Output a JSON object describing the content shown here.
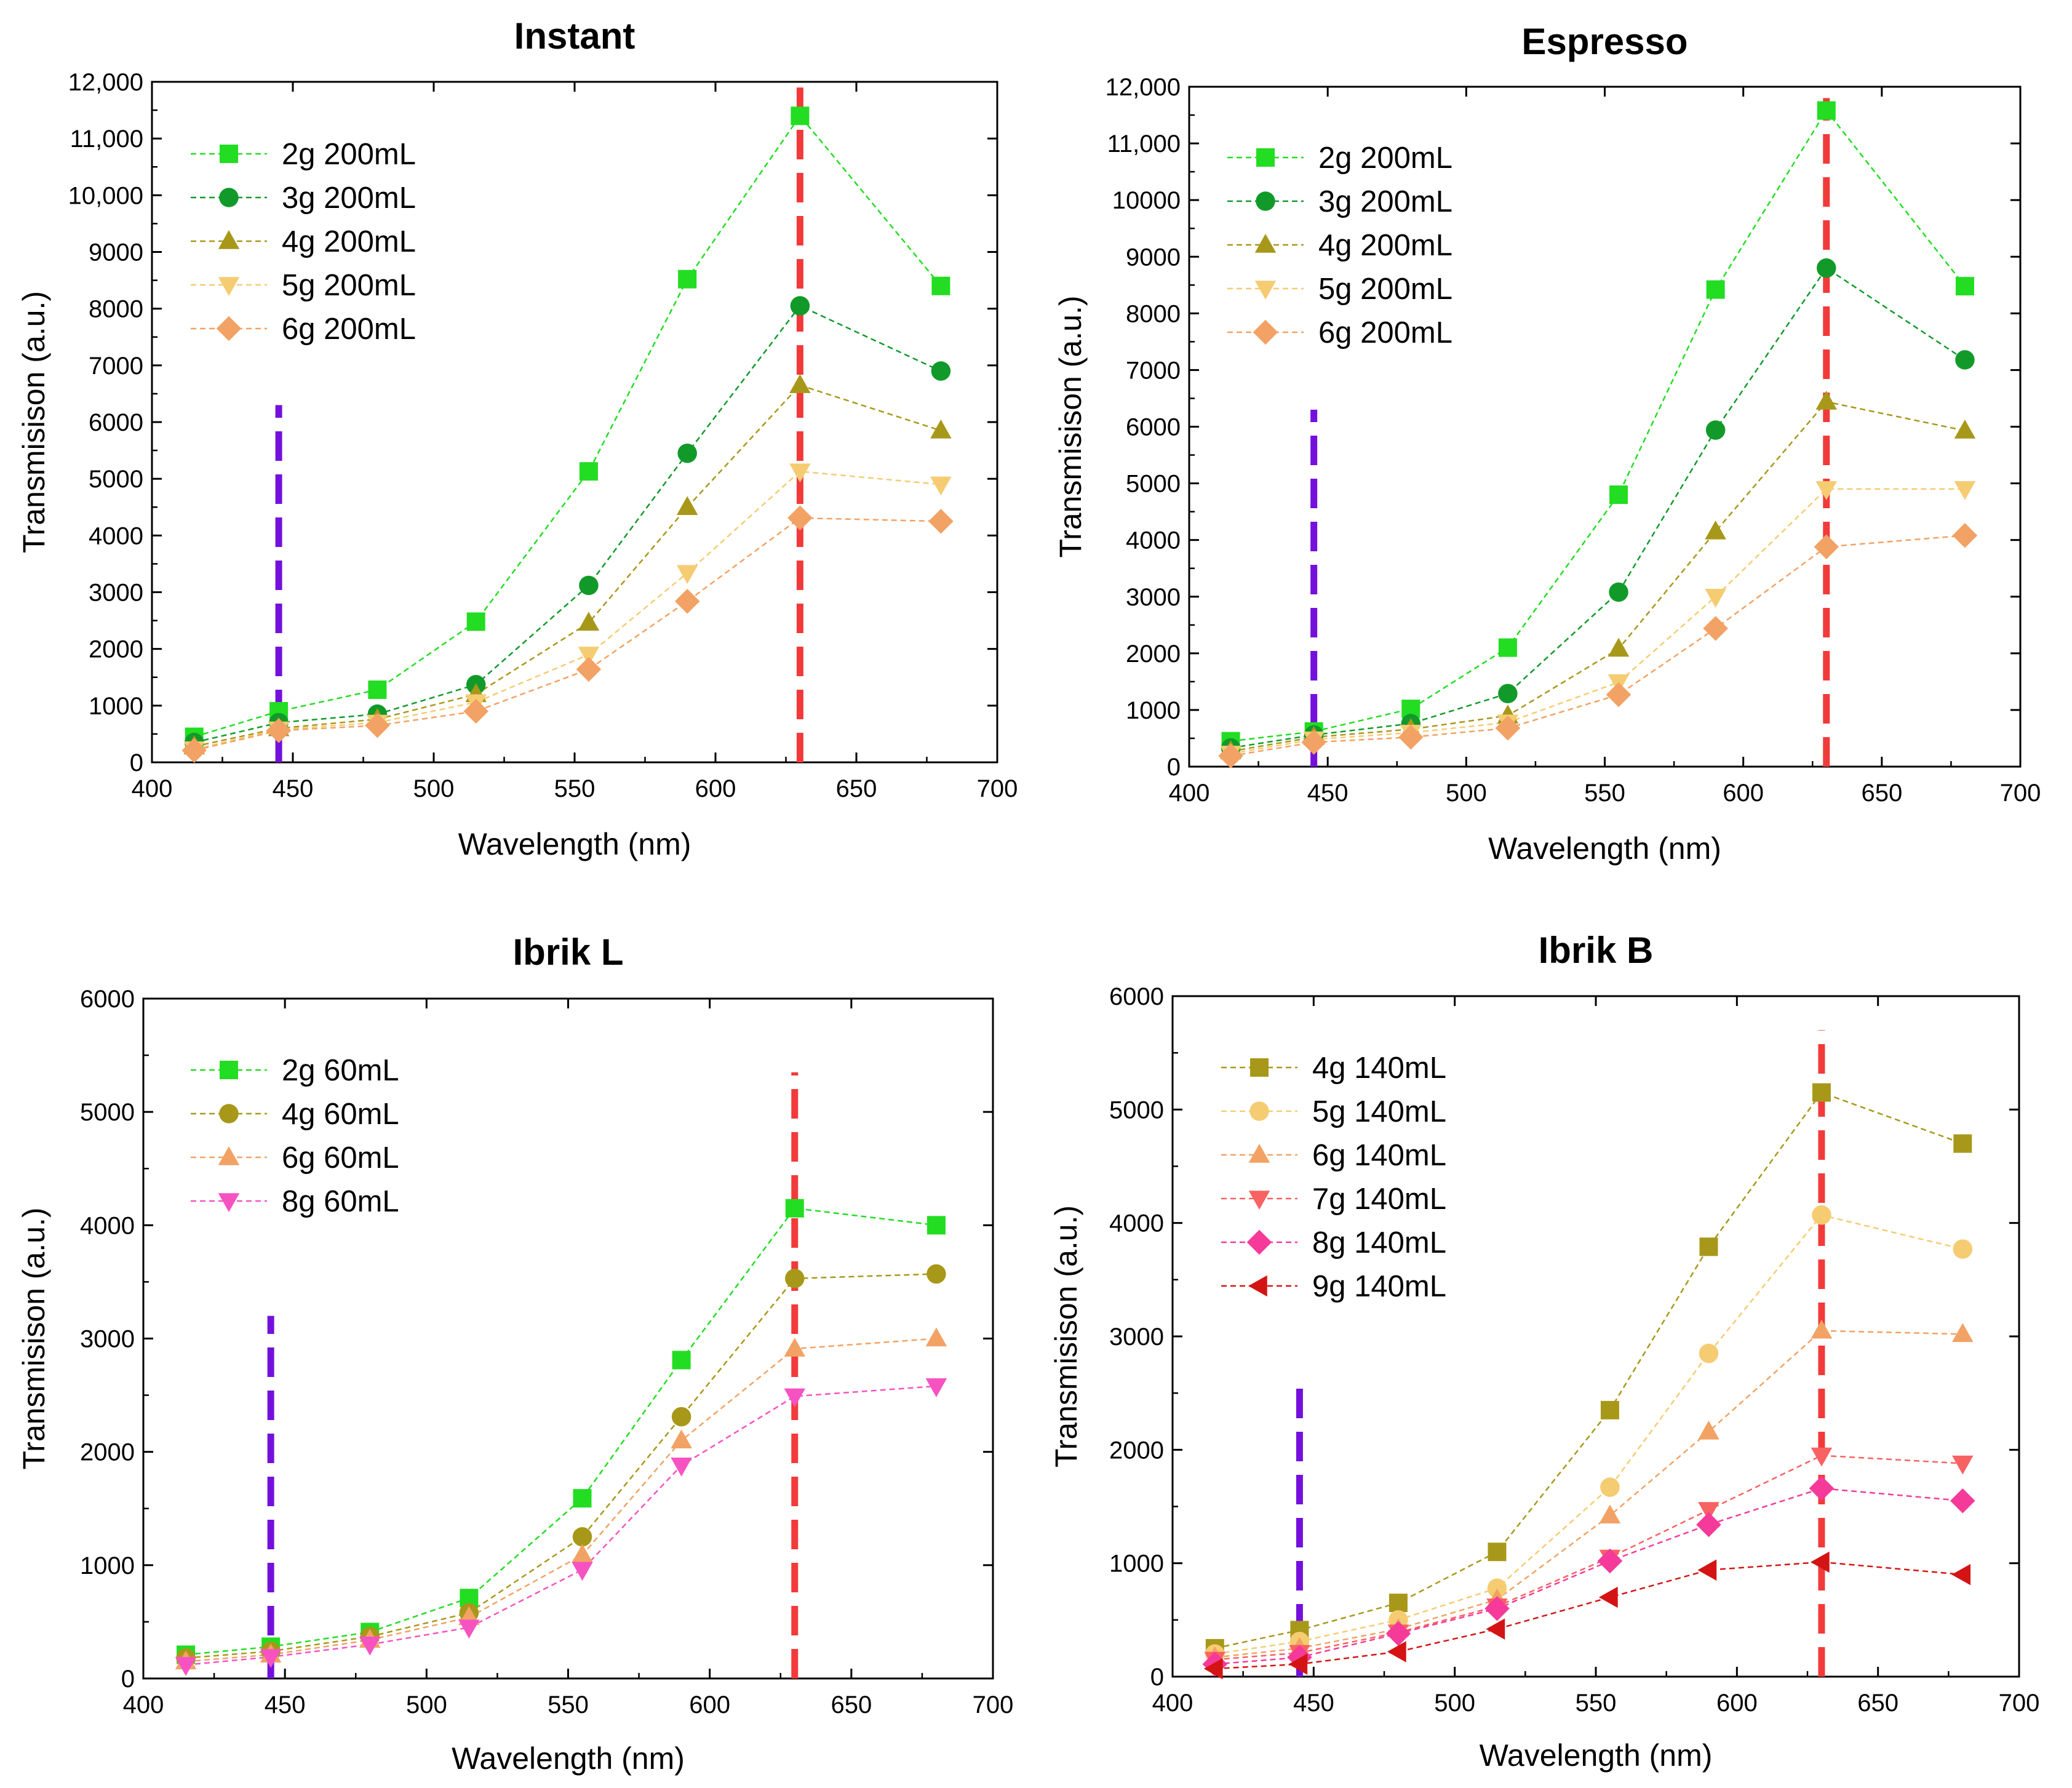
{
  "figure": {
    "panels": 4
  },
  "chart_data": [
    {
      "type": "line",
      "title": "Instant",
      "xlabel": "Wavelength (nm)",
      "ylabel": "Transmisison (a.u.)",
      "xlim": [
        400,
        700
      ],
      "ylim": [
        0,
        12000
      ],
      "xticks": [
        400,
        450,
        500,
        550,
        600,
        650,
        700
      ],
      "yticks": [
        0,
        1000,
        2000,
        3000,
        4000,
        5000,
        6000,
        7000,
        8000,
        9000,
        10000,
        11000,
        12000
      ],
      "ytick_labels": [
        "0",
        "1000",
        "2000",
        "3000",
        "4000",
        "5000",
        "6000",
        "7000",
        "8000",
        "9000",
        "10,000",
        "11,000",
        "12,000"
      ],
      "x": [
        415,
        445,
        480,
        515,
        555,
        590,
        630,
        680
      ],
      "series": [
        {
          "name": "2g 200mL",
          "color": "#22dd22",
          "marker": "square",
          "values": [
            450,
            900,
            1280,
            2480,
            5130,
            8520,
            11400,
            8400
          ]
        },
        {
          "name": "3g 200mL",
          "color": "#119a2a",
          "marker": "circle",
          "values": [
            350,
            700,
            850,
            1370,
            3120,
            5450,
            8050,
            6900
          ]
        },
        {
          "name": "4g 200mL",
          "color": "#a8981a",
          "marker": "triangle-up",
          "values": [
            280,
            600,
            760,
            1200,
            2460,
            4500,
            6650,
            5850
          ]
        },
        {
          "name": "5g 200mL",
          "color": "#f5cc72",
          "marker": "triangle-down",
          "values": [
            230,
            580,
            700,
            1060,
            1900,
            3340,
            5130,
            4900
          ]
        },
        {
          "name": "6g 200mL",
          "color": "#f2a264",
          "marker": "diamond",
          "values": [
            210,
            560,
            650,
            900,
            1640,
            2840,
            4310,
            4250
          ]
        }
      ],
      "vlines": [
        {
          "x": 445,
          "ymin": 0,
          "ymax": 6300,
          "color": "#7410dc"
        },
        {
          "x": 630,
          "ymin": 0,
          "ymax": 11900,
          "color": "#f23a3a"
        }
      ]
    },
    {
      "type": "line",
      "title": "Espresso",
      "xlabel": "Wavelength (nm)",
      "ylabel": "Transmisison (a.u.)",
      "xlim": [
        400,
        700
      ],
      "ylim": [
        0,
        12000
      ],
      "xticks": [
        400,
        450,
        500,
        550,
        600,
        650,
        700
      ],
      "yticks": [
        0,
        1000,
        2000,
        3000,
        4000,
        5000,
        6000,
        7000,
        8000,
        9000,
        10000,
        11000,
        12000
      ],
      "ytick_labels": [
        "0",
        "1000",
        "2000",
        "3000",
        "4000",
        "5000",
        "6000",
        "7000",
        "8000",
        "9000",
        "10000",
        "11,000",
        "12,000"
      ],
      "x": [
        415,
        445,
        480,
        515,
        555,
        590,
        630,
        680
      ],
      "series": [
        {
          "name": "2g 200mL",
          "color": "#22dd22",
          "marker": "square",
          "values": [
            450,
            620,
            1020,
            2100,
            4800,
            8420,
            11580,
            8480
          ]
        },
        {
          "name": "3g 200mL",
          "color": "#119a2a",
          "marker": "circle",
          "values": [
            330,
            560,
            760,
            1290,
            3080,
            5940,
            8800,
            7180
          ]
        },
        {
          "name": "4g 200mL",
          "color": "#a8981a",
          "marker": "triangle-up",
          "values": [
            270,
            520,
            660,
            900,
            2080,
            4150,
            6440,
            5930
          ]
        },
        {
          "name": "5g 200mL",
          "color": "#f5cc72",
          "marker": "triangle-down",
          "values": [
            230,
            480,
            600,
            780,
            1490,
            3000,
            4900,
            4900
          ]
        },
        {
          "name": "6g 200mL",
          "color": "#f2a264",
          "marker": "diamond",
          "values": [
            190,
            430,
            520,
            680,
            1270,
            2440,
            3880,
            4080
          ]
        }
      ],
      "vlines": [
        {
          "x": 445,
          "ymin": 0,
          "ymax": 6300,
          "color": "#7410dc"
        },
        {
          "x": 630,
          "ymin": 0,
          "ymax": 11800,
          "color": "#f23a3a"
        }
      ]
    },
    {
      "type": "line",
      "title": "Ibrik L",
      "xlabel": "Wavelength (nm)",
      "ylabel": "Transmisison (a.u.)",
      "xlim": [
        400,
        700
      ],
      "ylim": [
        0,
        6000
      ],
      "xticks": [
        400,
        450,
        500,
        550,
        600,
        650,
        700
      ],
      "yticks": [
        0,
        1000,
        2000,
        3000,
        4000,
        5000,
        6000
      ],
      "ytick_labels": [
        "0",
        "1000",
        "2000",
        "3000",
        "4000",
        "5000",
        "6000"
      ],
      "x": [
        415,
        445,
        480,
        515,
        555,
        590,
        630,
        680
      ],
      "series": [
        {
          "name": "2g 60mL",
          "color": "#22dd22",
          "marker": "square",
          "values": [
            210,
            280,
            410,
            710,
            1590,
            2810,
            4150,
            4000
          ]
        },
        {
          "name": "4g 60mL",
          "color": "#a8981a",
          "marker": "circle",
          "values": [
            180,
            240,
            370,
            580,
            1250,
            2310,
            3530,
            3570
          ]
        },
        {
          "name": "6g 60mL",
          "color": "#f2a264",
          "marker": "triangle-up",
          "values": [
            150,
            210,
            340,
            540,
            1090,
            2100,
            2910,
            3000
          ]
        },
        {
          "name": "8g 60mL",
          "color": "#f752c2",
          "marker": "triangle-down",
          "values": [
            120,
            190,
            300,
            450,
            960,
            1880,
            2490,
            2580
          ]
        }
      ],
      "vlines": [
        {
          "x": 445,
          "ymin": 0,
          "ymax": 3200,
          "color": "#7410dc"
        },
        {
          "x": 630,
          "ymin": 0,
          "ymax": 5350,
          "color": "#f23a3a"
        }
      ]
    },
    {
      "type": "line",
      "title": "Ibrik B",
      "xlabel": "Wavelength (nm)",
      "ylabel": "Transmisison (a.u.)",
      "xlim": [
        400,
        700
      ],
      "ylim": [
        0,
        6000
      ],
      "xticks": [
        400,
        450,
        500,
        550,
        600,
        650,
        700
      ],
      "yticks": [
        0,
        1000,
        2000,
        3000,
        4000,
        5000,
        6000
      ],
      "ytick_labels": [
        "0",
        "1000",
        "2000",
        "3000",
        "4000",
        "5000",
        "6000"
      ],
      "x": [
        415,
        445,
        480,
        515,
        555,
        590,
        630,
        680
      ],
      "series": [
        {
          "name": "4g 140mL",
          "color": "#a8981a",
          "marker": "square",
          "values": [
            250,
            410,
            650,
            1100,
            2350,
            3790,
            5150,
            4700
          ]
        },
        {
          "name": "5g 140mL",
          "color": "#f5cc72",
          "marker": "circle",
          "values": [
            200,
            310,
            500,
            780,
            1670,
            2850,
            4070,
            3770
          ]
        },
        {
          "name": "6g 140mL",
          "color": "#f2a264",
          "marker": "triangle-up",
          "values": [
            170,
            250,
            420,
            680,
            1420,
            2160,
            3050,
            3020
          ]
        },
        {
          "name": "7g 140mL",
          "color": "#f86262",
          "marker": "triangle-down",
          "values": [
            150,
            210,
            390,
            620,
            1050,
            1470,
            1950,
            1880
          ]
        },
        {
          "name": "8g 140mL",
          "color": "#f53a9a",
          "marker": "diamond",
          "values": [
            110,
            170,
            380,
            600,
            1020,
            1340,
            1660,
            1550
          ]
        },
        {
          "name": "9g 140mL",
          "color": "#d41414",
          "marker": "triangle-left",
          "values": [
            70,
            110,
            220,
            420,
            700,
            940,
            1010,
            900
          ]
        }
      ],
      "vlines": [
        {
          "x": 445,
          "ymin": 0,
          "ymax": 2600,
          "color": "#7410dc"
        },
        {
          "x": 630,
          "ymin": 0,
          "ymax": 5700,
          "color": "#f23a3a"
        }
      ]
    }
  ]
}
